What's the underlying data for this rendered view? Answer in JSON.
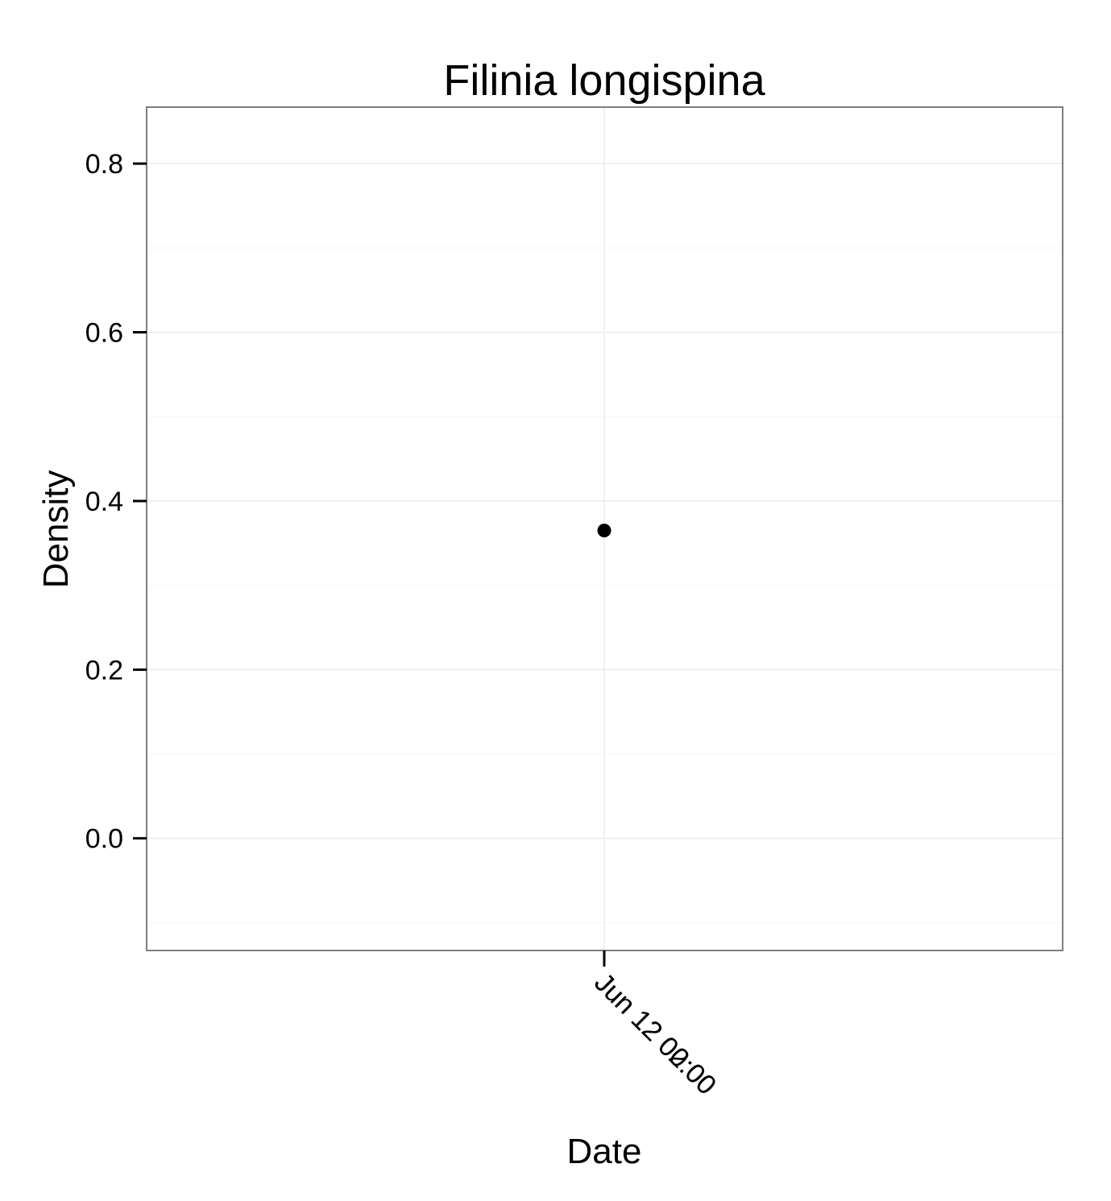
{
  "chart_data": {
    "type": "scatter",
    "title": "Filinia longispina",
    "xlabel": "Date",
    "ylabel": "Density",
    "ylim": [
      -0.133,
      0.867
    ],
    "yticks": [
      0.0,
      0.2,
      0.4,
      0.6,
      0.8
    ],
    "ytick_labels": [
      "0.0",
      "0.2",
      "0.4",
      "0.6",
      "0.8"
    ],
    "xtick_labels": [
      "Jun 12 00:00",
      "Jun 12 02:00"
    ],
    "grid": true,
    "points": [
      {
        "x": "Jun 12",
        "y": 0.365
      }
    ],
    "colors": {
      "point": "#000000",
      "grid_major": "#ebebeb",
      "grid_minor": "#f5f5f5",
      "panel_border": "#7f7f7f"
    }
  }
}
